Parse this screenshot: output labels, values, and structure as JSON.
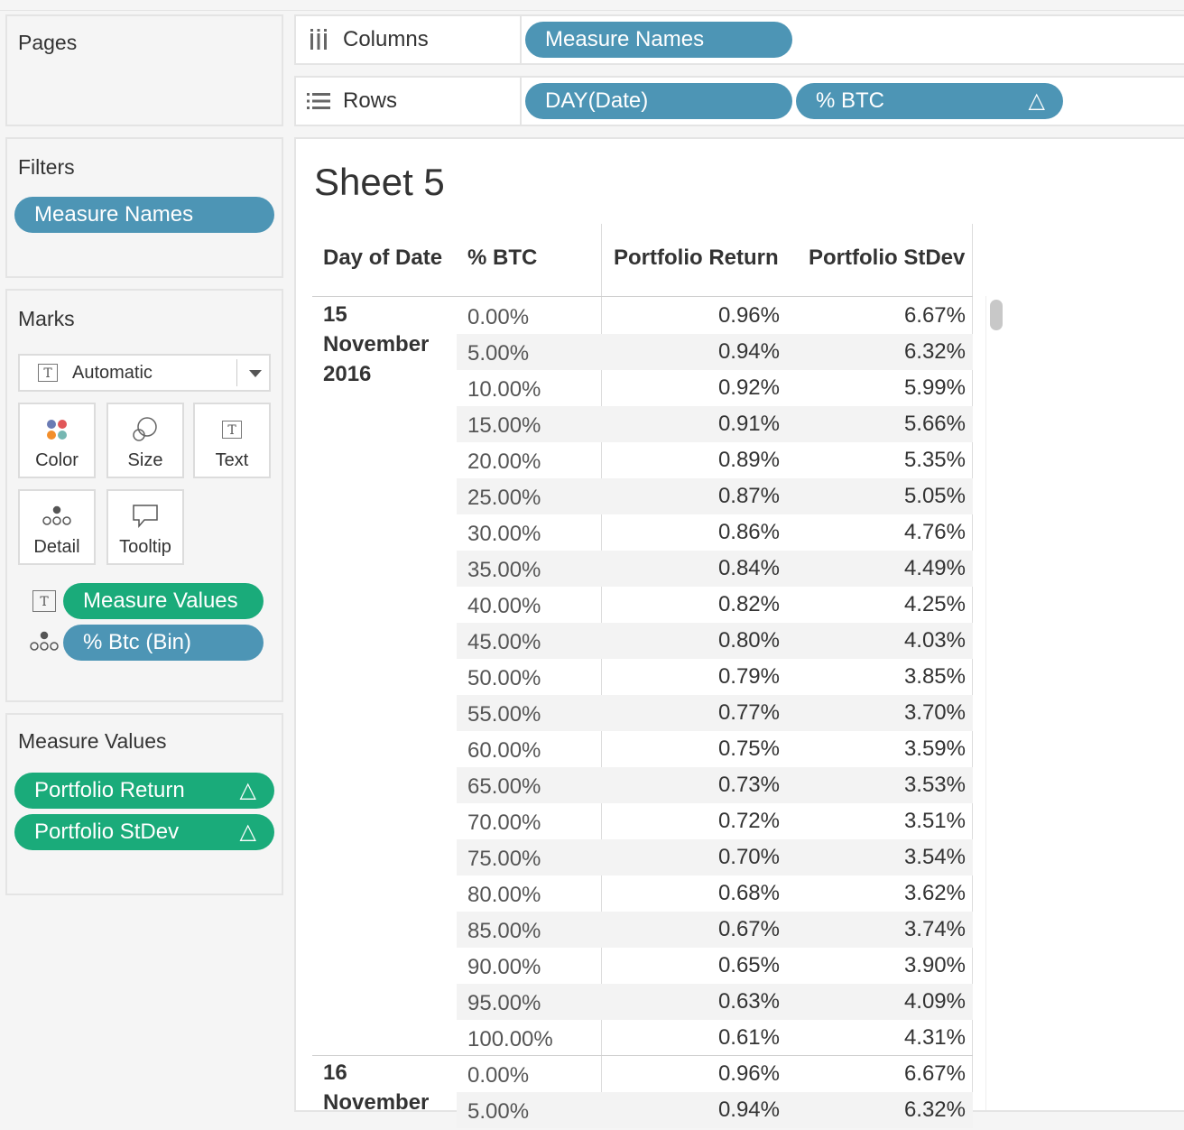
{
  "cards": {
    "pages": {
      "title": "Pages"
    },
    "filters": {
      "title": "Filters",
      "pills": [
        "Measure Names"
      ]
    },
    "marks": {
      "title": "Marks",
      "mark_type": "Automatic",
      "buttons": {
        "color": "Color",
        "size": "Size",
        "text": "Text",
        "detail": "Detail",
        "tooltip": "Tooltip"
      },
      "fields": [
        {
          "label": "Measure Values",
          "color": "#1aab7a"
        },
        {
          "label": "% Btc (Bin)",
          "color": "#4d95b5"
        }
      ]
    },
    "measure_values": {
      "title": "Measure Values",
      "pills": [
        {
          "label": "Portfolio Return",
          "icon": "delta-icon"
        },
        {
          "label": "Portfolio StDev",
          "icon": "delta-icon"
        }
      ]
    }
  },
  "shelves": {
    "columns": {
      "label": "Columns",
      "pills": [
        "Measure Names"
      ]
    },
    "rows": {
      "label": "Rows",
      "pills": [
        "DAY(Date)",
        "% BTC"
      ]
    }
  },
  "view": {
    "title": "Sheet 5",
    "headers": {
      "date": "Day of Date",
      "btc": "% BTC",
      "return": "Portfolio Return",
      "stdev": "Portfolio StDev"
    },
    "groups": [
      {
        "date_lines": [
          "15",
          "November",
          "2016"
        ],
        "rows": [
          {
            "btc": "0.00%",
            "ret": "0.96%",
            "std": "6.67%"
          },
          {
            "btc": "5.00%",
            "ret": "0.94%",
            "std": "6.32%"
          },
          {
            "btc": "10.00%",
            "ret": "0.92%",
            "std": "5.99%"
          },
          {
            "btc": "15.00%",
            "ret": "0.91%",
            "std": "5.66%"
          },
          {
            "btc": "20.00%",
            "ret": "0.89%",
            "std": "5.35%"
          },
          {
            "btc": "25.00%",
            "ret": "0.87%",
            "std": "5.05%"
          },
          {
            "btc": "30.00%",
            "ret": "0.86%",
            "std": "4.76%"
          },
          {
            "btc": "35.00%",
            "ret": "0.84%",
            "std": "4.49%"
          },
          {
            "btc": "40.00%",
            "ret": "0.82%",
            "std": "4.25%"
          },
          {
            "btc": "45.00%",
            "ret": "0.80%",
            "std": "4.03%"
          },
          {
            "btc": "50.00%",
            "ret": "0.79%",
            "std": "3.85%"
          },
          {
            "btc": "55.00%",
            "ret": "0.77%",
            "std": "3.70%"
          },
          {
            "btc": "60.00%",
            "ret": "0.75%",
            "std": "3.59%"
          },
          {
            "btc": "65.00%",
            "ret": "0.73%",
            "std": "3.53%"
          },
          {
            "btc": "70.00%",
            "ret": "0.72%",
            "std": "3.51%"
          },
          {
            "btc": "75.00%",
            "ret": "0.70%",
            "std": "3.54%"
          },
          {
            "btc": "80.00%",
            "ret": "0.68%",
            "std": "3.62%"
          },
          {
            "btc": "85.00%",
            "ret": "0.67%",
            "std": "3.74%"
          },
          {
            "btc": "90.00%",
            "ret": "0.65%",
            "std": "3.90%"
          },
          {
            "btc": "95.00%",
            "ret": "0.63%",
            "std": "4.09%"
          },
          {
            "btc": "100.00%",
            "ret": "0.61%",
            "std": "4.31%"
          }
        ]
      },
      {
        "date_lines": [
          "16",
          "November"
        ],
        "rows": [
          {
            "btc": "0.00%",
            "ret": "0.96%",
            "std": "6.67%"
          },
          {
            "btc": "5.00%",
            "ret": "0.94%",
            "std": "6.32%"
          }
        ]
      }
    ]
  }
}
